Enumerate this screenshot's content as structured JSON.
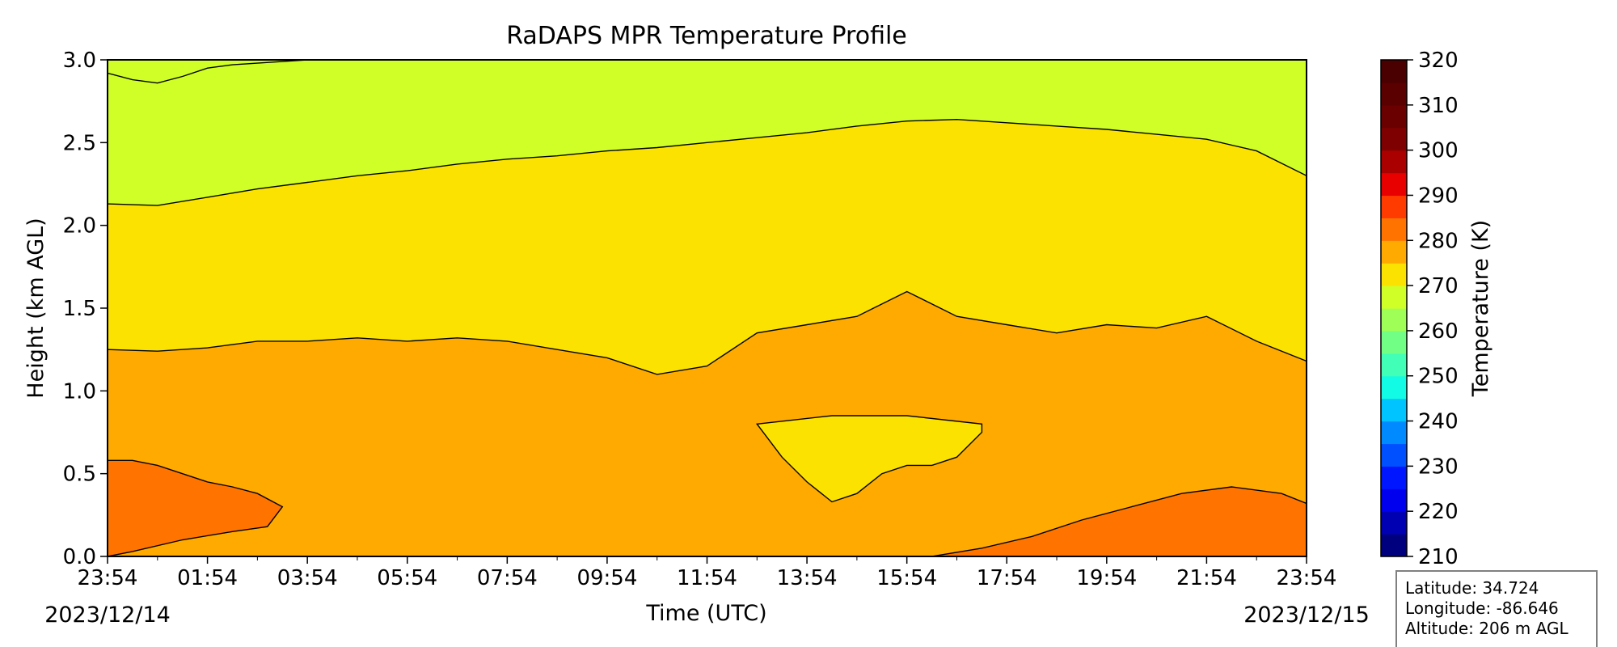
{
  "chart_data": {
    "type": "filled-contour",
    "title": "RaDAPS MPR Temperature Profile",
    "xlabel": "Time (UTC)",
    "ylabel": "Height (km AGL)",
    "x_ticks": [
      "23:54",
      "01:54",
      "03:54",
      "05:54",
      "07:54",
      "09:54",
      "11:54",
      "13:54",
      "15:54",
      "17:54",
      "19:54",
      "21:54",
      "23:54"
    ],
    "x_range_hours": [
      0,
      24
    ],
    "start_date": "2023/12/14",
    "end_date": "2023/12/15",
    "y_ticks": [
      "0.0",
      "0.5",
      "1.0",
      "1.5",
      "2.0",
      "2.5",
      "3.0"
    ],
    "ylim": [
      0,
      3
    ],
    "colorbar": {
      "label": "Temperature (K)",
      "ticks": [
        "210",
        "220",
        "230",
        "240",
        "250",
        "260",
        "270",
        "280",
        "290",
        "300",
        "310",
        "320"
      ],
      "range": [
        210,
        320
      ],
      "step": 5,
      "colors": [
        "#00007f",
        "#0000b2",
        "#0000ee",
        "#0016ff",
        "#0050ff",
        "#008aff",
        "#00c4ff",
        "#12fbe4",
        "#41ffb6",
        "#71ff86",
        "#a0ff56",
        "#d0ff27",
        "#fce200",
        "#ffaa00",
        "#ff7400",
        "#ff3b00",
        "#e80000",
        "#aa0000",
        "#7f0000",
        "#6a0000",
        "#5a0000",
        "#4a0000"
      ]
    },
    "contours": [
      {
        "level": 265,
        "points": [
          [
            0,
            2.92
          ],
          [
            0.5,
            2.88
          ],
          [
            1,
            2.86
          ],
          [
            1.5,
            2.9
          ],
          [
            2,
            2.95
          ],
          [
            2.5,
            2.97
          ],
          [
            3,
            2.98
          ],
          [
            4,
            3.0
          ],
          [
            6,
            3.0
          ],
          [
            7.2,
            3.0
          ]
        ]
      },
      {
        "level": 270,
        "points": [
          [
            0,
            2.13
          ],
          [
            1,
            2.12
          ],
          [
            2,
            2.17
          ],
          [
            3,
            2.22
          ],
          [
            4,
            2.26
          ],
          [
            5,
            2.3
          ],
          [
            6,
            2.33
          ],
          [
            7,
            2.37
          ],
          [
            8,
            2.4
          ],
          [
            9,
            2.42
          ],
          [
            10,
            2.45
          ],
          [
            11,
            2.47
          ],
          [
            12,
            2.5
          ],
          [
            13,
            2.53
          ],
          [
            14,
            2.56
          ],
          [
            15,
            2.6
          ],
          [
            16,
            2.63
          ],
          [
            17,
            2.64
          ],
          [
            18,
            2.62
          ],
          [
            19,
            2.6
          ],
          [
            20,
            2.58
          ],
          [
            21,
            2.55
          ],
          [
            22,
            2.52
          ],
          [
            23,
            2.45
          ],
          [
            24,
            2.3
          ]
        ]
      },
      {
        "level": 275,
        "points": [
          [
            0,
            1.25
          ],
          [
            1,
            1.24
          ],
          [
            2,
            1.26
          ],
          [
            3,
            1.3
          ],
          [
            4,
            1.3
          ],
          [
            5,
            1.32
          ],
          [
            6,
            1.3
          ],
          [
            7,
            1.32
          ],
          [
            8,
            1.3
          ],
          [
            9,
            1.25
          ],
          [
            10,
            1.2
          ],
          [
            11,
            1.1
          ],
          [
            12,
            1.15
          ],
          [
            13,
            1.35
          ],
          [
            14,
            1.4
          ],
          [
            15,
            1.45
          ],
          [
            16,
            1.6
          ],
          [
            17,
            1.45
          ],
          [
            18,
            1.4
          ],
          [
            19,
            1.35
          ],
          [
            20,
            1.4
          ],
          [
            21,
            1.38
          ],
          [
            22,
            1.45
          ],
          [
            23,
            1.3
          ],
          [
            24,
            1.18
          ]
        ]
      },
      {
        "level": 275,
        "closed": true,
        "points": [
          [
            13,
            0.8
          ],
          [
            13.5,
            0.6
          ],
          [
            14,
            0.45
          ],
          [
            14.5,
            0.33
          ],
          [
            15,
            0.38
          ],
          [
            15.5,
            0.5
          ],
          [
            16,
            0.55
          ],
          [
            16.5,
            0.55
          ],
          [
            17,
            0.6
          ],
          [
            17.5,
            0.75
          ],
          [
            17.5,
            0.8
          ],
          [
            16,
            0.85
          ],
          [
            14.5,
            0.85
          ],
          [
            13,
            0.8
          ]
        ]
      },
      {
        "level": 280,
        "points": [
          [
            0,
            0.58
          ],
          [
            0.5,
            0.58
          ],
          [
            1,
            0.55
          ],
          [
            1.5,
            0.5
          ],
          [
            2,
            0.45
          ],
          [
            2.5,
            0.42
          ],
          [
            3,
            0.38
          ],
          [
            3.5,
            0.3
          ],
          [
            3.2,
            0.18
          ],
          [
            2.5,
            0.15
          ],
          [
            1.5,
            0.1
          ],
          [
            0.5,
            0.03
          ],
          [
            0,
            0.0
          ]
        ]
      },
      {
        "level": 280,
        "points": [
          [
            16.5,
            0.0
          ],
          [
            17.5,
            0.05
          ],
          [
            18.5,
            0.12
          ],
          [
            19.5,
            0.22
          ],
          [
            20.5,
            0.3
          ],
          [
            21.5,
            0.38
          ],
          [
            22.5,
            0.42
          ],
          [
            23.5,
            0.38
          ],
          [
            24,
            0.32
          ]
        ]
      }
    ],
    "info_box": {
      "latitude": "Latitude: 34.724",
      "longitude": "Longitude: -86.646",
      "altitude": "Altitude: 206 m AGL"
    }
  }
}
